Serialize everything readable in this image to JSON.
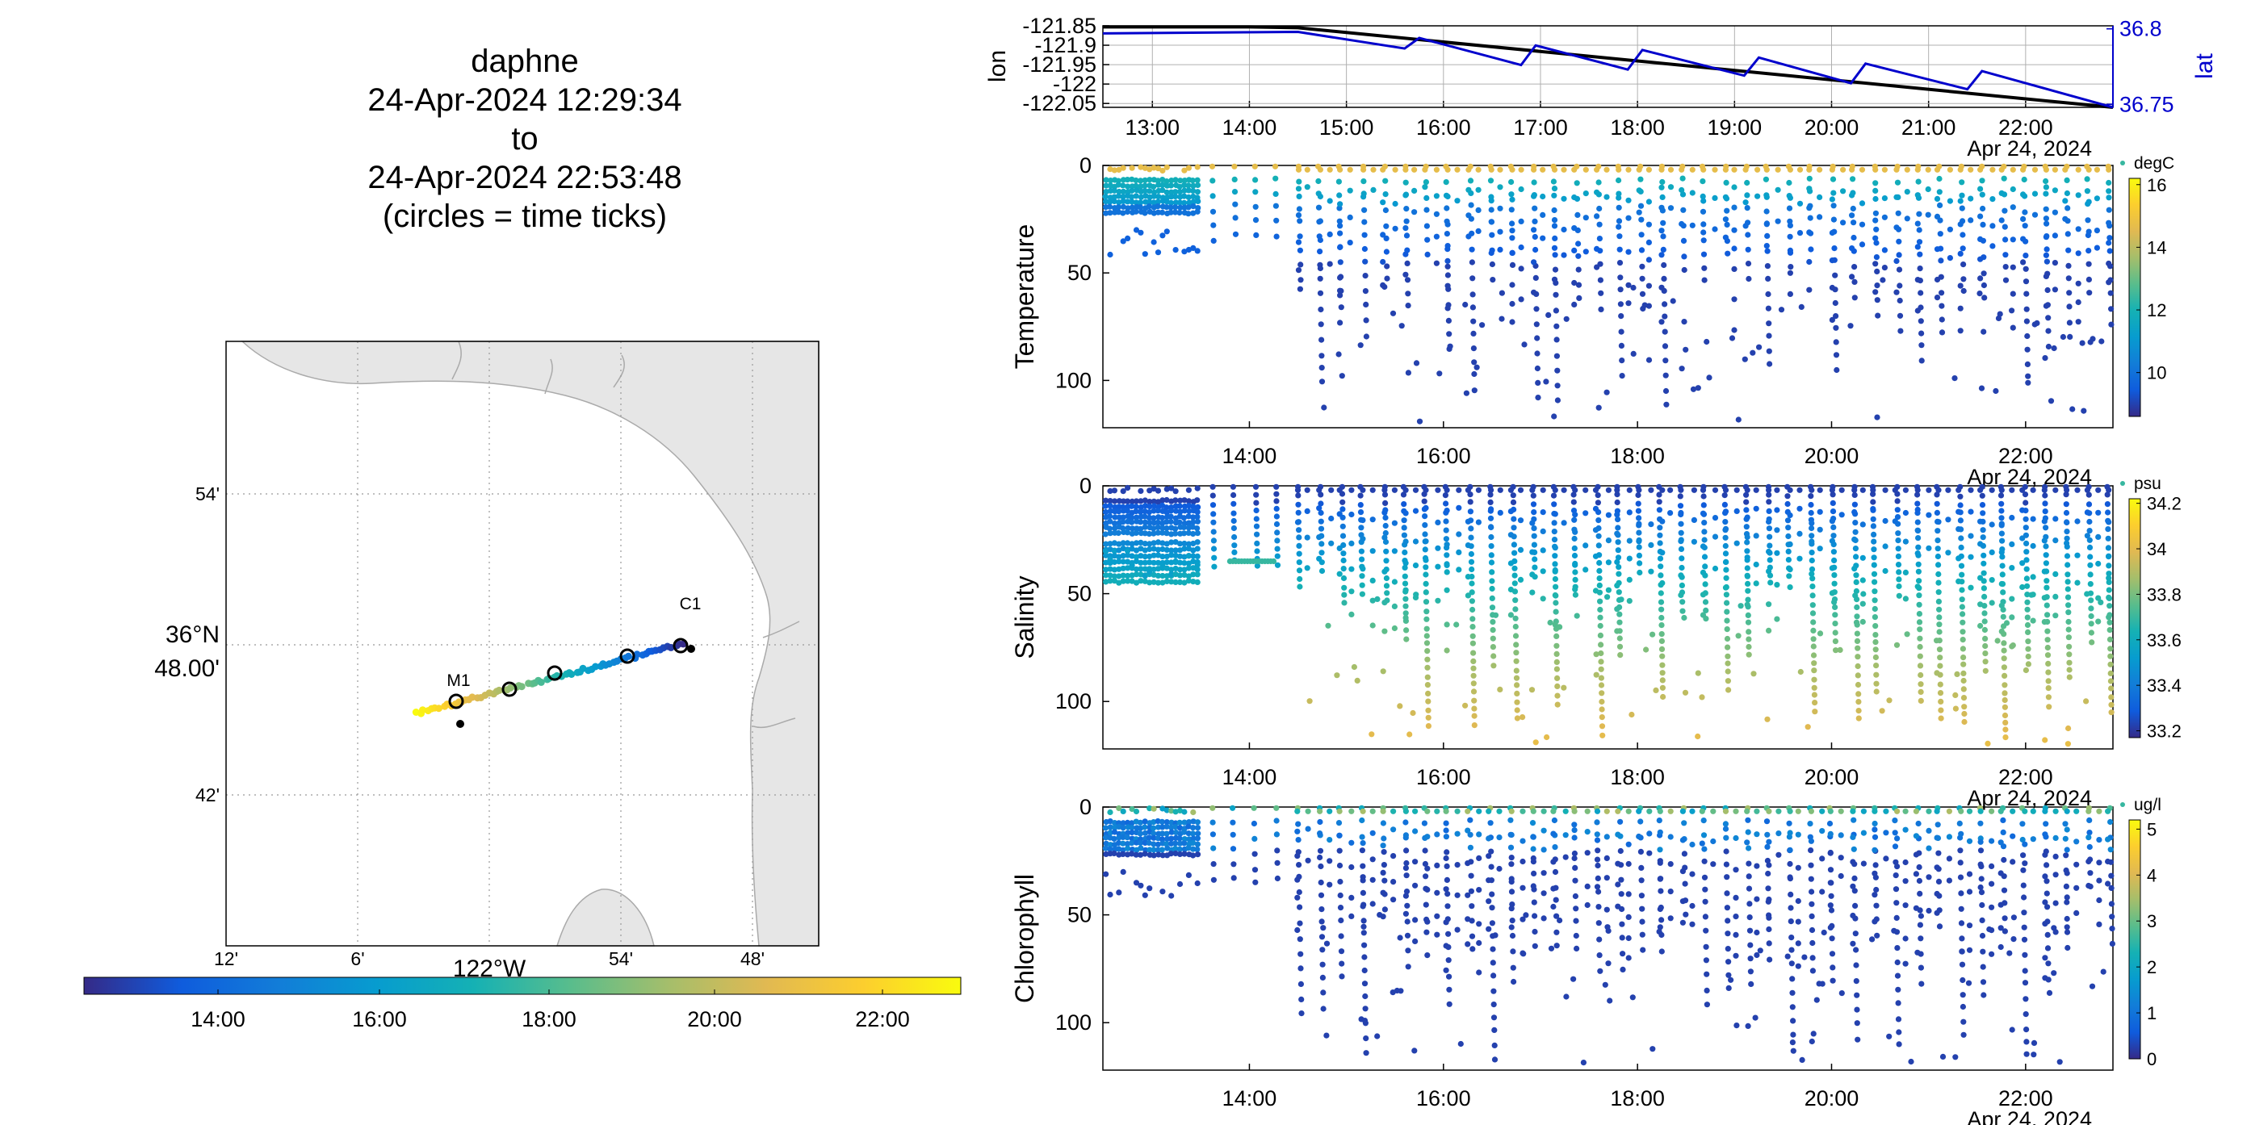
{
  "title_lines": [
    "daphne",
    "24-Apr-2024 12:29:34",
    "to",
    "24-Apr-2024 22:53:48",
    "(circles = time ticks)"
  ],
  "colors": {
    "lat_axis": "#0000cc",
    "coast_fill": "#e6e6e6",
    "coast_line": "#aaaaaa",
    "grid": "#b0b0b0"
  },
  "chart_data": [
    {
      "type": "line",
      "name": "lonlat-timeseries",
      "ylabel": "lon",
      "ylabel_right": "lat",
      "x_ticks": [
        "13:00",
        "14:00",
        "15:00",
        "16:00",
        "17:00",
        "18:00",
        "19:00",
        "20:00",
        "21:00",
        "22:00"
      ],
      "x_range_hours": [
        12.49,
        22.9
      ],
      "date_label": "Apr 24, 2024",
      "ylim_left": [
        -122.06,
        -121.85
      ],
      "y_ticks_left": [
        "-121.85",
        "-121.9",
        "-121.95",
        "-122",
        "-122.05"
      ],
      "ylim_right": [
        36.748,
        36.802
      ],
      "y_ticks_right": [
        "36.8",
        "36.75"
      ],
      "series": [
        {
          "name": "lon",
          "color": "#000000",
          "x": [
            12.49,
            14.0,
            14.5,
            22.9
          ],
          "y": [
            -121.853,
            -121.853,
            -121.855,
            -122.06
          ]
        },
        {
          "name": "lat",
          "color": "#0000cc",
          "x": [
            12.49,
            14.5,
            15.6,
            15.75,
            16.8,
            16.95,
            17.9,
            18.05,
            19.1,
            19.25,
            20.2,
            20.35,
            21.4,
            21.55,
            22.9
          ],
          "y": [
            36.797,
            36.798,
            36.787,
            36.794,
            36.776,
            36.789,
            36.773,
            36.786,
            36.769,
            36.781,
            36.764,
            36.777,
            36.76,
            36.772,
            36.748
          ]
        }
      ],
      "grid": true
    },
    {
      "type": "scatter",
      "name": "temperature-section",
      "ylabel": "Temperature",
      "unit": "degC",
      "x_ticks": [
        "14:00",
        "16:00",
        "18:00",
        "20:00",
        "22:00"
      ],
      "date_label": "Apr 24, 2024",
      "y_ticks": [
        "0",
        "50",
        "100"
      ],
      "ylim": [
        0,
        122
      ],
      "colorbar_ticks": [
        "16",
        "14",
        "12",
        "10"
      ],
      "color_range": [
        8.6,
        16.2
      ]
    },
    {
      "type": "scatter",
      "name": "salinity-section",
      "ylabel": "Salinity",
      "unit": "psu",
      "x_ticks": [
        "14:00",
        "16:00",
        "18:00",
        "20:00",
        "22:00"
      ],
      "date_label": "Apr 24, 2024",
      "y_ticks": [
        "0",
        "50",
        "100"
      ],
      "ylim": [
        0,
        122
      ],
      "colorbar_ticks": [
        "34.2",
        "34",
        "33.8",
        "33.6",
        "33.4",
        "33.2"
      ],
      "color_range": [
        33.17,
        34.22
      ]
    },
    {
      "type": "scatter",
      "name": "chlorophyll-section",
      "ylabel": "Chlorophyll",
      "unit": "ug/l",
      "x_ticks": [
        "14:00",
        "16:00",
        "18:00",
        "20:00",
        "22:00"
      ],
      "date_label": "Apr 24, 2024",
      "y_ticks": [
        "0",
        "50",
        "100"
      ],
      "ylim": [
        0,
        122
      ],
      "colorbar_ticks": [
        "5",
        "4",
        "3",
        "2",
        "1",
        "0"
      ],
      "color_range": [
        0,
        5.2
      ]
    },
    {
      "type": "scatter",
      "name": "track-map",
      "lat_ticks": [
        "54'",
        "36°N 48.00'",
        "42'"
      ],
      "lon_ticks": [
        "12'",
        "6'",
        "122°W",
        "54'",
        "48'"
      ],
      "stations": [
        "M1",
        "C1"
      ],
      "colorbar_ticks": [
        "14:00",
        "16:00",
        "18:00",
        "20:00",
        "22:00"
      ],
      "track": {
        "lon": [
          -122.04,
          -121.83
        ],
        "lat": [
          36.749,
          36.798
        ]
      }
    }
  ]
}
